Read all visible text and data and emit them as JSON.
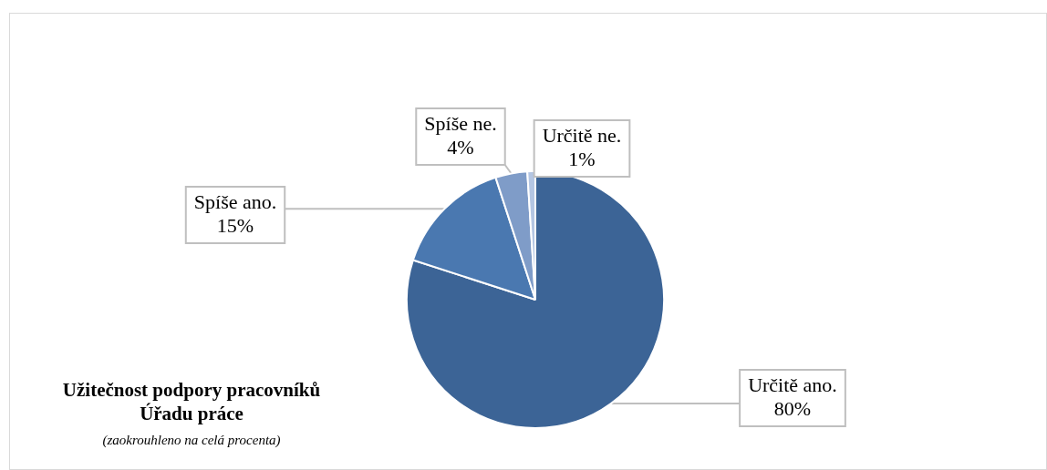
{
  "chart_data": {
    "type": "pie",
    "title": "Užitečnost podpory pracovníků Úřadu práce",
    "subtitle": "(zaokrouhleno na celá procenta)",
    "categories": [
      "Určitě ano.",
      "Spíše ano.",
      "Spíše ne.",
      "Určitě ne."
    ],
    "values": [
      80,
      15,
      4,
      1
    ],
    "colors": [
      "#3c6496",
      "#4a78b0",
      "#7f9cc8",
      "#b4c6e3"
    ],
    "value_labels": [
      "80%",
      "15%",
      "4%",
      "1%"
    ],
    "legend": false
  }
}
